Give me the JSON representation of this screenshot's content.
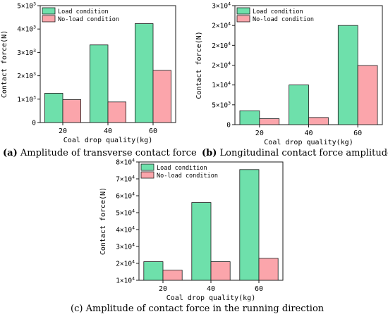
{
  "chart_data": [
    {
      "type": "bar",
      "caption_id": "(a)",
      "caption_text": " Amplitude of transverse contact force",
      "xlabel": "Coal drop quality(kg)",
      "ylabel": "Contact force(N)",
      "categories": [
        "20",
        "40",
        "60"
      ],
      "series": [
        {
          "name": "Load condition",
          "values": [
            1250,
            3320,
            4230
          ]
        },
        {
          "name": "No-load condition",
          "values": [
            980,
            880,
            2230
          ]
        }
      ],
      "ylim": [
        0,
        5000
      ],
      "yticks": [
        {
          "v": 0,
          "m": "0",
          "e": ""
        },
        {
          "v": 1000,
          "m": "1×10",
          "e": "3"
        },
        {
          "v": 2000,
          "m": "2×10",
          "e": "3"
        },
        {
          "v": 3000,
          "m": "3×10",
          "e": "3"
        },
        {
          "v": 4000,
          "m": "4×10",
          "e": "3"
        },
        {
          "v": 5000,
          "m": "5×10",
          "e": "3"
        }
      ],
      "legend": "top-left",
      "grid": false
    },
    {
      "type": "bar",
      "caption_id": "(b)",
      "caption_text": " Longitudinal contact force amplitude",
      "xlabel": "Coal drop quality(kg)",
      "ylabel": "Contact force(N)",
      "categories": [
        "20",
        "40",
        "60"
      ],
      "series": [
        {
          "name": "Load condition",
          "values": [
            3500,
            10000,
            25000
          ]
        },
        {
          "name": "No-load condition",
          "values": [
            1500,
            1800,
            14900
          ]
        }
      ],
      "ylim": [
        0,
        30000
      ],
      "yticks": [
        {
          "v": 0,
          "m": "0",
          "e": ""
        },
        {
          "v": 5000,
          "m": "5×10",
          "e": "3"
        },
        {
          "v": 10000,
          "m": "1×10",
          "e": "4"
        },
        {
          "v": 15000,
          "m": "2×10",
          "e": "4"
        },
        {
          "v": 20000,
          "m": "2×10",
          "e": "4"
        },
        {
          "v": 25000,
          "m": "2×10",
          "e": "4"
        },
        {
          "v": 30000,
          "m": "3×10",
          "e": "4"
        }
      ],
      "legend": "top-left",
      "grid": false
    },
    {
      "type": "bar",
      "caption_id": "(c)",
      "caption_text": " Amplitude of contact force in the running direction",
      "xlabel": "Coal drop quality(kg)",
      "ylabel": "Contact force(N)",
      "categories": [
        "20",
        "40",
        "60"
      ],
      "series": [
        {
          "name": "Load condition",
          "values": [
            21000,
            56000,
            75500
          ]
        },
        {
          "name": "No-load condition",
          "values": [
            16000,
            21000,
            23000
          ]
        }
      ],
      "ylim": [
        10000,
        80000
      ],
      "yticks": [
        {
          "v": 10000,
          "m": "1×10",
          "e": "4"
        },
        {
          "v": 20000,
          "m": "2×10",
          "e": "4"
        },
        {
          "v": 30000,
          "m": "3×10",
          "e": "4"
        },
        {
          "v": 40000,
          "m": "4×10",
          "e": "4"
        },
        {
          "v": 50000,
          "m": "5×10",
          "e": "4"
        },
        {
          "v": 60000,
          "m": "6×10",
          "e": "4"
        },
        {
          "v": 70000,
          "m": "7×10",
          "e": "4"
        },
        {
          "v": 80000,
          "m": "8×10",
          "e": "4"
        }
      ],
      "legend": "top-left",
      "grid": false
    }
  ],
  "colors": {
    "load": "#6ee0ab",
    "noload": "#fba5ab",
    "stroke": "#1a1a1a"
  }
}
